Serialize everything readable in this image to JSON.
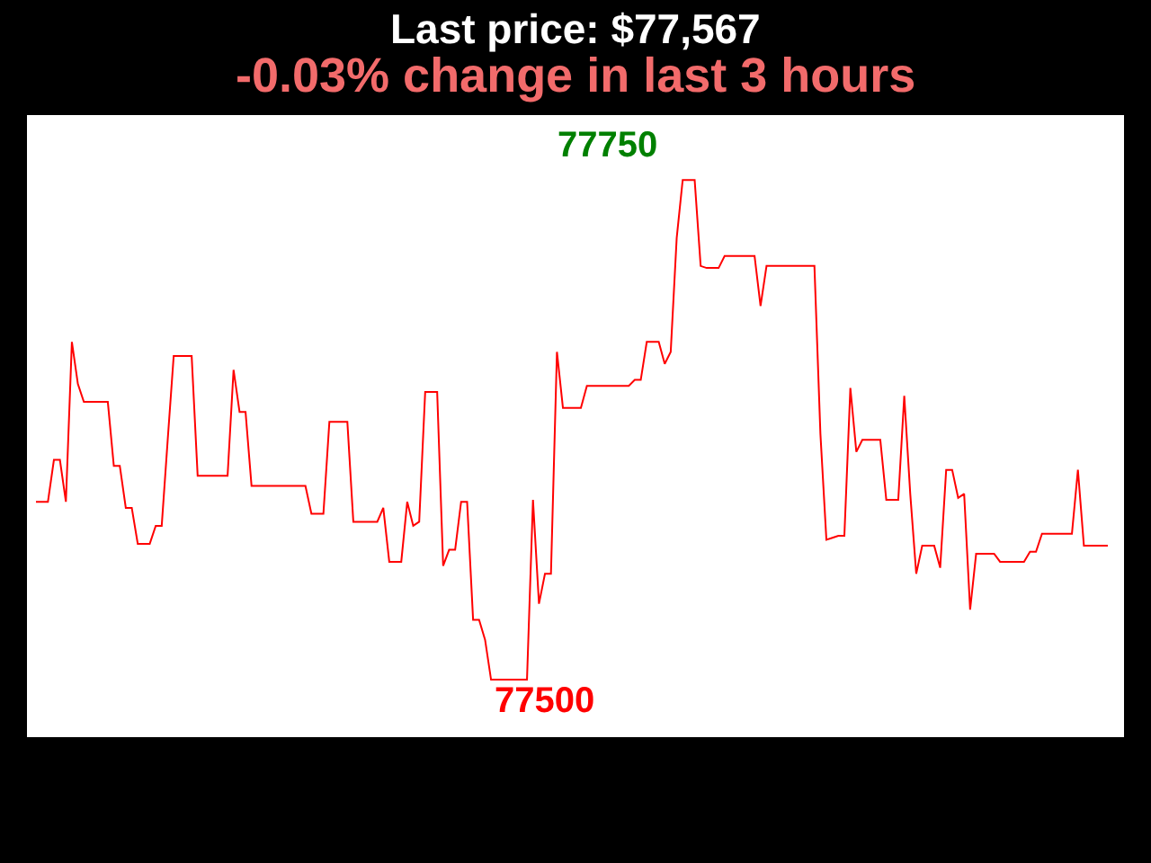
{
  "chart_data": {
    "type": "line",
    "title": "Last price: $77,567",
    "subtitle": "-0.03% change in last 3 hours",
    "categories": [
      null,
      null,
      null,
      null,
      null,
      null,
      null,
      null,
      null,
      null,
      null,
      null,
      null,
      null,
      null,
      null,
      null,
      null,
      null,
      null,
      null,
      null,
      null,
      null,
      null,
      null,
      null,
      null,
      null,
      null,
      null,
      null,
      null,
      null,
      null,
      null,
      null,
      null,
      null,
      null,
      null,
      null,
      null,
      null,
      null,
      null,
      null,
      null,
      null,
      null,
      null,
      null,
      null,
      null,
      null,
      null,
      null,
      null,
      null,
      null,
      null,
      null,
      null,
      null,
      null,
      null,
      null,
      null,
      null,
      null,
      null,
      null,
      null,
      null,
      null,
      null,
      null,
      null,
      null,
      null,
      null,
      null,
      null,
      null,
      null,
      null,
      null,
      null,
      null,
      null,
      null,
      null,
      null,
      null,
      null,
      null,
      null,
      null,
      null,
      null,
      null,
      null,
      null,
      null,
      null,
      null,
      null,
      null,
      null,
      null,
      null,
      null,
      null,
      null,
      null,
      null,
      null,
      null,
      null,
      null,
      null,
      null,
      null,
      null,
      null,
      null,
      null,
      null,
      null,
      null,
      null,
      null,
      null,
      null,
      null,
      null,
      null,
      null,
      null,
      null,
      null,
      null,
      null,
      null,
      null,
      null,
      null,
      null,
      null,
      null,
      null,
      null,
      null,
      null,
      null,
      null,
      null,
      null,
      null,
      null,
      null,
      null,
      null,
      null,
      null,
      null,
      null,
      null,
      null,
      null,
      null,
      null,
      null,
      null,
      null,
      null,
      null,
      null,
      null,
      null
    ],
    "values": [
      77589,
      77589,
      77589,
      77610,
      77610,
      77589,
      77669,
      77648,
      77639,
      77639,
      77639,
      77639,
      77639,
      77607,
      77607,
      77586,
      77586,
      77568,
      77568,
      77568,
      77577,
      77577,
      77620,
      77662,
      77662,
      77662,
      77662,
      77602,
      77602,
      77602,
      77602,
      77602,
      77602,
      77655,
      77634,
      77634,
      77597,
      77597,
      77597,
      77597,
      77597,
      77597,
      77597,
      77597,
      77597,
      77597,
      77583,
      77583,
      77583,
      77629,
      77629,
      77629,
      77629,
      77579,
      77579,
      77579,
      77579,
      77579,
      77586,
      77559,
      77559,
      77559,
      77589,
      77577,
      77579,
      77644,
      77644,
      77644,
      77557,
      77565,
      77565,
      77589,
      77589,
      77530,
      77530,
      77520,
      77500,
      77500,
      77500,
      77500,
      77500,
      77500,
      77500,
      77590,
      77538,
      77553,
      77553,
      77664,
      77636,
      77636,
      77636,
      77636,
      77647,
      77647,
      77647,
      77647,
      77647,
      77647,
      77647,
      77647,
      77650,
      77650,
      77669,
      77669,
      77669,
      77658,
      77664,
      77721,
      77750,
      77750,
      77750,
      77707,
      77706,
      77706,
      77706,
      77712,
      77712,
      77712,
      77712,
      77712,
      77712,
      77687,
      77707,
      77707,
      77707,
      77707,
      77707,
      77707,
      77707,
      77707,
      77707,
      77623,
      77570,
      77571,
      77572,
      77572,
      77646,
      77614,
      77620,
      77620,
      77620,
      77620,
      77590,
      77590,
      77590,
      77642,
      77593,
      77553,
      77567,
      77567,
      77567,
      77556,
      77605,
      77605,
      77591,
      77593,
      77535,
      77563,
      77563,
      77563,
      77563,
      77559,
      77559,
      77559,
      77559,
      77559,
      77564,
      77564,
      77573,
      77573,
      77573,
      77573,
      77573,
      77573,
      77605,
      77567,
      77567,
      77567,
      77567,
      77567
    ],
    "value_labels": [
      null,
      null,
      null,
      null,
      null,
      null,
      null,
      null,
      null,
      null,
      null,
      null,
      null,
      null,
      null,
      null,
      null,
      null,
      null,
      null,
      null,
      null,
      null,
      null,
      null,
      null,
      null,
      null,
      null,
      null,
      null,
      null,
      null,
      null,
      null,
      null,
      null,
      null,
      null,
      null,
      null,
      null,
      null,
      null,
      null,
      null,
      null,
      null,
      null,
      null,
      null,
      null,
      null,
      null,
      null,
      null,
      null,
      null,
      null,
      null,
      null,
      null,
      null,
      null,
      null,
      null,
      null,
      null,
      null,
      null,
      null,
      null,
      null,
      null,
      null,
      null,
      "77500",
      null,
      null,
      null,
      null,
      null,
      null,
      null,
      null,
      null,
      null,
      null,
      null,
      null,
      null,
      null,
      null,
      null,
      null,
      null,
      null,
      null,
      null,
      null,
      null,
      null,
      null,
      null,
      null,
      null,
      null,
      null,
      "77750",
      null,
      null,
      null,
      null,
      null,
      null,
      null,
      null,
      null,
      null,
      null,
      null,
      null,
      null,
      null,
      null,
      null,
      null,
      null,
      null,
      null,
      null,
      null,
      null,
      null,
      null,
      null,
      null,
      null,
      null,
      null,
      null,
      null,
      null,
      null,
      null,
      null,
      null,
      null,
      null,
      null,
      null,
      null,
      null,
      null,
      null,
      null,
      null,
      null,
      null,
      null,
      null,
      null,
      null,
      null,
      null,
      null,
      null,
      null,
      null,
      null,
      null,
      null,
      null,
      null,
      null,
      null,
      null,
      null,
      null,
      null
    ],
    "color": "#ff0000",
    "tick_labels": false
  }
}
